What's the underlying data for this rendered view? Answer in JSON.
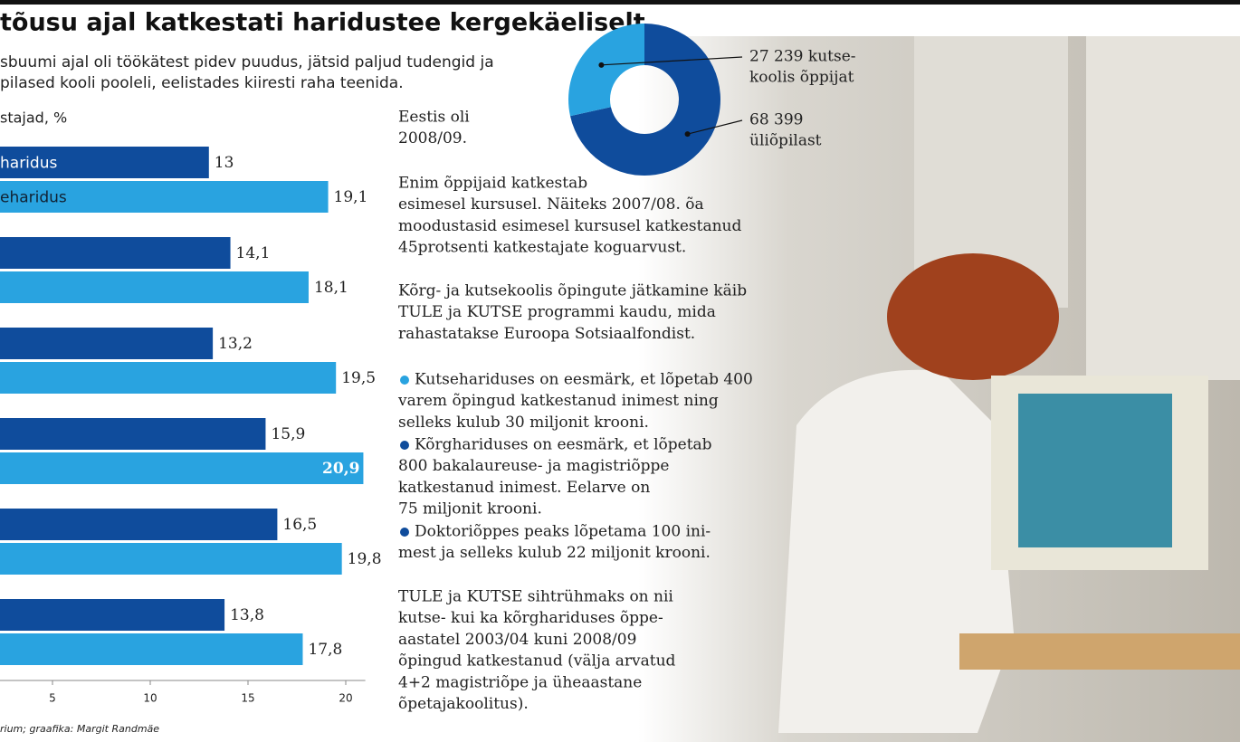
{
  "title": "tõusu ajal katkestati haridustee kergekäeliselt",
  "subtitle": [
    "sbuumi ajal oli töökätest pidev puudus, jätsid paljud tudengid ja",
    "pilased kooli pooleli, eelistades kiiresti raha teenida."
  ],
  "source": "rium; graafika: Margit Randmäe",
  "chart_data": [
    {
      "type": "bar",
      "orientation": "horizontal",
      "axis_label": "stajad, %",
      "categories": [
        null,
        null,
        null,
        null,
        null,
        null
      ],
      "series": [
        {
          "name": "haridus",
          "color": "#0f4c9c",
          "values": [
            13,
            14.1,
            13.2,
            15.9,
            16.5,
            13.8
          ],
          "value_labels": [
            "13",
            "14,1",
            "13,2",
            "15,9",
            "16,5",
            "13,8"
          ]
        },
        {
          "name": "eharidus",
          "color": "#29a3e0",
          "values": [
            19.1,
            18.1,
            19.5,
            20.9,
            19.8,
            17.8
          ],
          "value_labels": [
            "19,1",
            "18,1",
            "19,5",
            "20,9",
            "19,8",
            "17,8"
          ]
        }
      ],
      "xlim": [
        0,
        21
      ],
      "xticks": [
        5,
        10,
        15,
        20
      ]
    },
    {
      "type": "pie",
      "values": [
        68399,
        27239
      ],
      "colors": [
        "#0f4c9c",
        "#29a3e0"
      ],
      "value_labels": [
        [
          "68 399",
          "üliõpilast"
        ],
        [
          "27 239 kutse-",
          "koolis õppijat"
        ]
      ]
    }
  ],
  "article": {
    "paragraphs": [
      [
        "Eestis oli",
        "2008/09."
      ],
      [
        "Enim õppijaid katkestab",
        "esimesel kursusel. Näiteks 2007/08. õa",
        "moodustasid esimesel kursusel katkestanud",
        "45protsenti katkestajate koguarvust."
      ],
      [
        "Kõrg- ja kutsekoolis õpingute jätkamine käib",
        "TULE ja KUTSE programmi kaudu, mida",
        "rahastatakse Euroopa Sotsiaalfondist."
      ],
      [
        "TULE ja KUTSE sihtrühmaks on nii",
        "kutse- kui ka kõrghariduses õppe-",
        "aastatel 2003/04 kuni 2008/09",
        "õpingud katkestanud (välja arvatud",
        "4+2 magistriõpe ja üheaastane",
        "õpetajakoolitus)."
      ]
    ],
    "bullets": [
      [
        "Kutsehariduses on eesmärk, et lõpetab 400",
        "varem õpingud katkestanud inimest ning",
        "selleks kulub 30 miljonit krooni."
      ],
      [
        "Kõrghariduses on eesmärk, et lõpetab",
        "800 bakalaureuse- ja magistriõppe",
        "katkestanud inimest. Eelarve on",
        "75 miljonit krooni."
      ],
      [
        "Doktoriõppes peaks lõpetama 100 ini-",
        "mest ja selleks kulub 22 miljonit krooni."
      ]
    ]
  }
}
